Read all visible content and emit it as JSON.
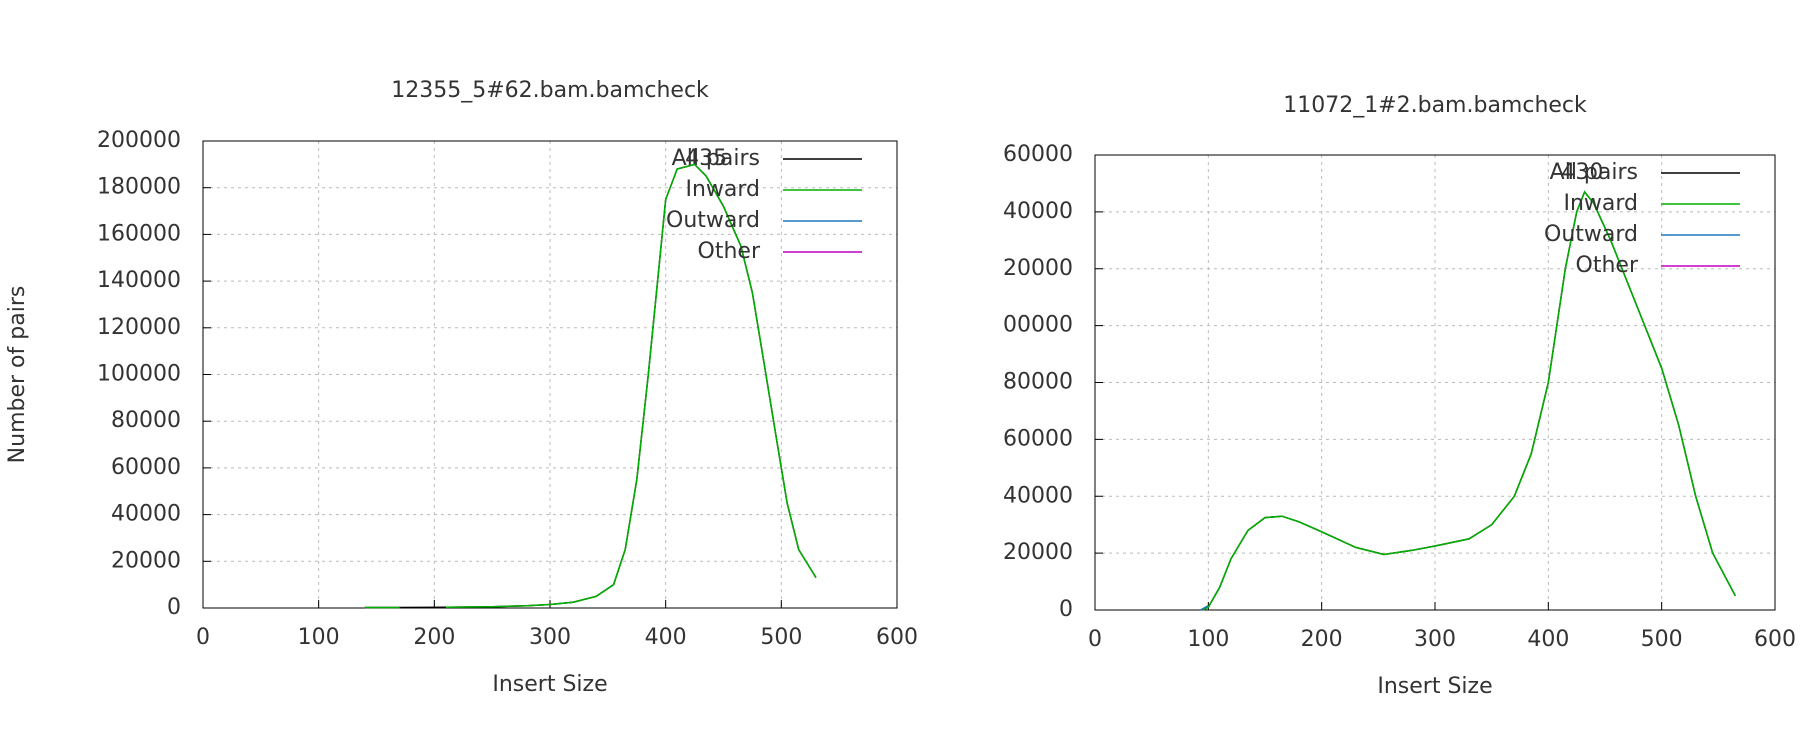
{
  "chart_data": [
    {
      "type": "line",
      "title": "12355_5#62.bam.bamcheck",
      "xlabel": "Insert Size",
      "ylabel": "Number of pairs",
      "xlim": [
        0,
        600
      ],
      "xticks": [
        0,
        100,
        200,
        300,
        400,
        500,
        600
      ],
      "ylim": [
        0,
        200000
      ],
      "yticks": [
        0,
        20000,
        40000,
        60000,
        80000,
        100000,
        120000,
        140000,
        160000,
        180000,
        200000
      ],
      "grid": true,
      "legend": "top-right",
      "annotations": [
        "435"
      ],
      "series": [
        {
          "name": "All pairs",
          "color": "#000000",
          "x": [
            140,
            170,
            210,
            250,
            280,
            300,
            320,
            340,
            355,
            365,
            375,
            385,
            395,
            400,
            410,
            425,
            435,
            450,
            465,
            475,
            485,
            495,
            505,
            515,
            530
          ],
          "values": [
            200,
            200,
            300,
            500,
            1000,
            1500,
            2500,
            5000,
            10000,
            25000,
            55000,
            100000,
            150000,
            175000,
            188000,
            190000,
            185000,
            172000,
            155000,
            135000,
            105000,
            75000,
            45000,
            25000,
            13000
          ]
        },
        {
          "name": "Inward",
          "color": "#00b000",
          "x": [
            140,
            170,
            190,
            210,
            250,
            280,
            300,
            320,
            340,
            355,
            365,
            375,
            385,
            395,
            400,
            410,
            425,
            435,
            450,
            465,
            475,
            485,
            495,
            505,
            515,
            530
          ],
          "values": [
            200,
            200,
            null,
            300,
            500,
            1000,
            1500,
            2500,
            5000,
            10000,
            25000,
            55000,
            100000,
            150000,
            175000,
            188000,
            190000,
            185000,
            172000,
            155000,
            135000,
            105000,
            75000,
            45000,
            25000,
            13000
          ]
        },
        {
          "name": "Outward",
          "color": "#1f78c0",
          "x": [],
          "values": []
        },
        {
          "name": "Other",
          "color": "#c000c0",
          "x": [],
          "values": []
        }
      ]
    },
    {
      "type": "line",
      "title": "11072_1#2.bam.bamcheck",
      "xlabel": "Insert Size",
      "xlim": [
        0,
        600
      ],
      "xticks": [
        0,
        100,
        200,
        300,
        400,
        500,
        600
      ],
      "ylim": [
        0,
        160000
      ],
      "yticks": [
        0,
        {
          "value": 20000,
          "label": "20000"
        },
        {
          "value": 40000,
          "label": "40000"
        },
        {
          "value": 60000,
          "label": "60000"
        },
        {
          "value": 80000,
          "label": "80000"
        },
        {
          "value": 100000,
          "label": "00000"
        },
        {
          "value": 120000,
          "label": "20000"
        },
        {
          "value": 140000,
          "label": "40000"
        },
        {
          "value": 160000,
          "label": "60000"
        }
      ],
      "grid": true,
      "legend": "top-right",
      "annotations": [
        "430"
      ],
      "series": [
        {
          "name": "All pairs",
          "color": "#000000",
          "x": [
            95,
            100,
            110,
            120,
            135,
            150,
            165,
            180,
            200,
            230,
            255,
            280,
            300,
            330,
            350,
            370,
            385,
            400,
            415,
            425,
            432,
            440,
            455,
            470,
            485,
            500,
            515,
            530,
            545,
            565
          ],
          "values": [
            0,
            1000,
            8000,
            18000,
            28000,
            32500,
            33000,
            31000,
            27500,
            22000,
            19500,
            21000,
            22500,
            25000,
            30000,
            40000,
            55000,
            80000,
            120000,
            140000,
            147000,
            143000,
            130000,
            115000,
            100000,
            85000,
            65000,
            40000,
            20000,
            5000
          ]
        },
        {
          "name": "Inward",
          "color": "#00b000",
          "x": [
            95,
            100,
            110,
            120,
            135,
            150,
            165,
            180,
            200,
            230,
            255,
            280,
            300,
            330,
            350,
            370,
            385,
            400,
            415,
            425,
            432,
            440,
            455,
            470,
            485,
            500,
            515,
            530,
            545,
            565
          ],
          "values": [
            0,
            1000,
            8000,
            18000,
            28000,
            32500,
            33000,
            31000,
            27500,
            22000,
            19500,
            21000,
            22500,
            25000,
            30000,
            40000,
            55000,
            80000,
            120000,
            140000,
            147000,
            143000,
            130000,
            115000,
            100000,
            85000,
            65000,
            40000,
            20000,
            5000
          ]
        },
        {
          "name": "Outward",
          "color": "#1f78c0",
          "x": [
            93,
            100
          ],
          "values": [
            0,
            1500
          ]
        },
        {
          "name": "Other",
          "color": "#c000c0",
          "x": [],
          "values": []
        }
      ]
    }
  ]
}
